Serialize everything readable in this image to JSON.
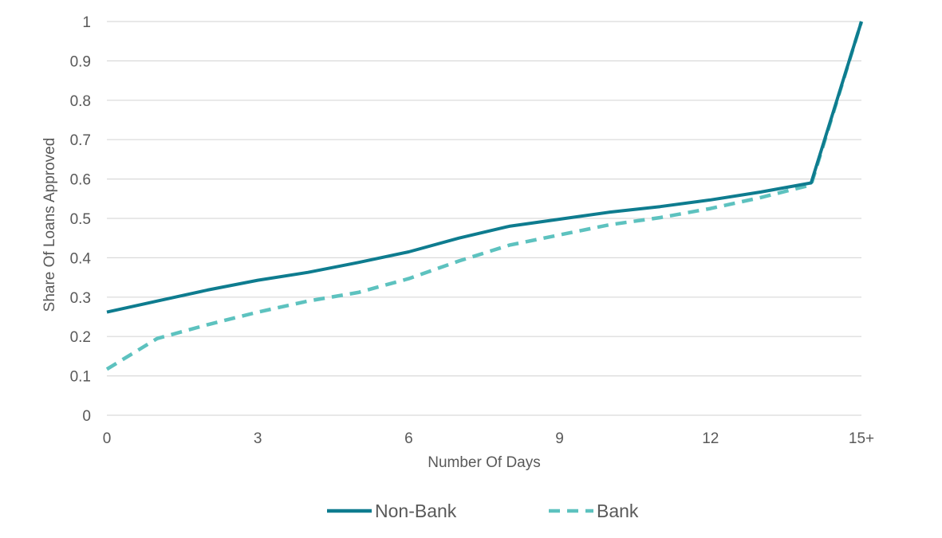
{
  "chart_data": {
    "type": "line",
    "title": "",
    "xlabel": "Number Of Days",
    "ylabel": "Share Of Loans Approved",
    "x": [
      0,
      1,
      2,
      3,
      4,
      5,
      6,
      7,
      8,
      9,
      10,
      11,
      12,
      13,
      14,
      15
    ],
    "x_tick_values": [
      0,
      3,
      6,
      9,
      12,
      15
    ],
    "x_tick_labels": [
      "0",
      "3",
      "6",
      "9",
      "12",
      "15+"
    ],
    "xlim": [
      0,
      15
    ],
    "ylim": [
      0,
      1
    ],
    "y_tick_values": [
      0,
      0.1,
      0.2,
      0.3,
      0.4,
      0.5,
      0.6,
      0.7,
      0.8,
      0.9,
      1
    ],
    "y_tick_labels": [
      "0",
      "0.1",
      "0.2",
      "0.3",
      "0.4",
      "0.5",
      "0.6",
      "0.7",
      "0.8",
      "0.9",
      "1"
    ],
    "grid": "horizontal",
    "legend_position": "bottom",
    "series": [
      {
        "name": "Non-Bank",
        "color": "#0e7c8f",
        "style": "solid",
        "values": [
          0.262,
          0.29,
          0.318,
          0.343,
          0.363,
          0.388,
          0.415,
          0.45,
          0.48,
          0.498,
          0.516,
          0.53,
          0.547,
          0.567,
          0.59,
          1.0
        ]
      },
      {
        "name": "Bank",
        "color": "#5dc2bf",
        "style": "dashed",
        "values": [
          0.117,
          0.195,
          0.23,
          0.262,
          0.29,
          0.312,
          0.347,
          0.392,
          0.432,
          0.458,
          0.484,
          0.502,
          0.525,
          0.553,
          0.585,
          1.0
        ]
      }
    ]
  }
}
